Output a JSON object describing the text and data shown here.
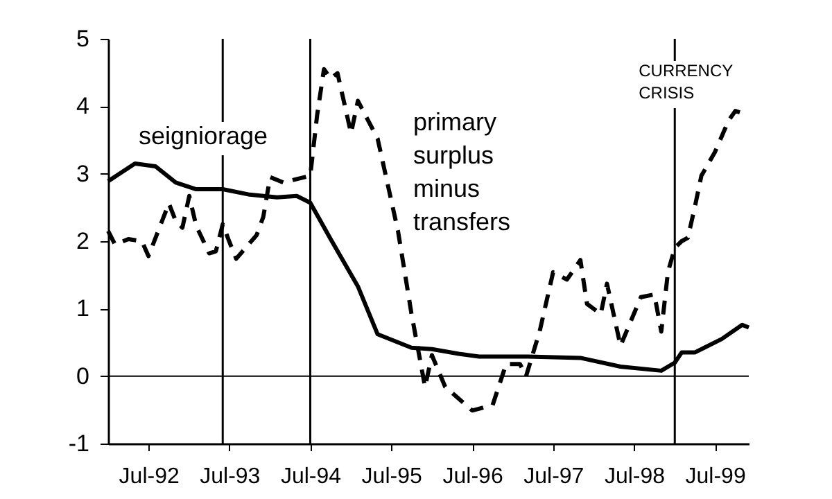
{
  "chart_data": {
    "type": "line",
    "xlim": [
      "1992-01",
      "1999-12"
    ],
    "xticks": [
      {
        "value": "1992-07",
        "label": "Jul-92"
      },
      {
        "value": "1993-07",
        "label": "Jul-93"
      },
      {
        "value": "1994-07",
        "label": "Jul-94"
      },
      {
        "value": "1995-07",
        "label": "Jul-95"
      },
      {
        "value": "1996-07",
        "label": "Jul-96"
      },
      {
        "value": "1997-07",
        "label": "Jul-97"
      },
      {
        "value": "1998-07",
        "label": "Jul-98"
      },
      {
        "value": "1999-07",
        "label": "Jul-99"
      }
    ],
    "ylim": [
      -1,
      5
    ],
    "yticks": [
      -1,
      0,
      1,
      2,
      3,
      4,
      5
    ],
    "grid": false,
    "series": [
      {
        "name": "seigniorage",
        "color": "#000000",
        "line_style": "solid",
        "x": [
          "1992-01",
          "1992-05",
          "1992-08",
          "1992-11",
          "1993-02",
          "1993-06",
          "1993-10",
          "1994-02",
          "1994-05",
          "1994-07",
          "1994-10",
          "1995-02",
          "1995-05",
          "1995-10",
          "1996-01",
          "1996-05",
          "1996-08",
          "1997-03",
          "1997-11",
          "1998-05",
          "1998-11",
          "1999-01",
          "1999-02",
          "1999-04",
          "1999-08",
          "1999-11",
          "1999-12"
        ],
        "values": [
          2.89,
          3.15,
          3.11,
          2.87,
          2.77,
          2.77,
          2.69,
          2.65,
          2.67,
          2.57,
          2.03,
          1.33,
          0.62,
          0.42,
          0.4,
          0.33,
          0.29,
          0.29,
          0.27,
          0.14,
          0.08,
          0.2,
          0.35,
          0.35,
          0.55,
          0.76,
          0.72
        ]
      },
      {
        "name": "primary surplus minus transfers",
        "color": "#000000",
        "line_style": "dashed",
        "x": [
          "1992-01",
          "1992-02",
          "1992-04",
          "1992-06",
          "1992-07",
          "1992-10",
          "1992-11",
          "1992-12",
          "1993-01",
          "1993-02",
          "1993-04",
          "1993-05",
          "1993-06",
          "1993-07",
          "1993-08",
          "1993-11",
          "1993-12",
          "1994-01",
          "1994-03",
          "1994-07",
          "1994-08",
          "1994-09",
          "1994-10",
          "1994-11",
          "1995-01",
          "1995-02",
          "1995-05",
          "1995-08",
          "1995-10",
          "1995-12",
          "1996-01",
          "1996-03",
          "1996-07",
          "1996-10",
          "1996-12",
          "1997-02",
          "1997-03",
          "1997-05",
          "1997-07",
          "1997-09",
          "1997-11",
          "1997-12",
          "1998-02",
          "1998-03",
          "1998-05",
          "1998-08",
          "1998-10",
          "1998-11",
          "1998-12",
          "1999-01",
          "1999-02",
          "1999-03",
          "1999-04",
          "1999-05",
          "1999-07",
          "1999-09",
          "1999-10",
          "1999-11"
        ],
        "values": [
          2.15,
          1.95,
          2.03,
          2.0,
          1.78,
          2.56,
          2.3,
          2.2,
          2.67,
          2.23,
          1.82,
          1.85,
          2.25,
          1.99,
          1.74,
          2.09,
          2.36,
          2.95,
          2.87,
          2.97,
          3.87,
          4.55,
          4.41,
          4.49,
          3.6,
          4.08,
          3.52,
          2.15,
          0.92,
          -0.16,
          0.31,
          -0.16,
          -0.51,
          -0.43,
          0.18,
          0.18,
          0.0,
          0.66,
          1.54,
          1.43,
          1.72,
          1.07,
          0.92,
          1.37,
          0.45,
          1.17,
          1.21,
          0.66,
          1.54,
          1.9,
          2.0,
          2.05,
          2.5,
          2.97,
          3.32,
          3.79,
          3.93,
          3.9
        ]
      }
    ],
    "ref_lines": [
      {
        "axis": "x",
        "value": "1993-06"
      },
      {
        "axis": "x",
        "value": "1994-07"
      },
      {
        "axis": "x",
        "value": "1999-01",
        "label": "CURRENCY CRISIS"
      },
      {
        "axis": "y",
        "value": 0
      }
    ]
  }
}
